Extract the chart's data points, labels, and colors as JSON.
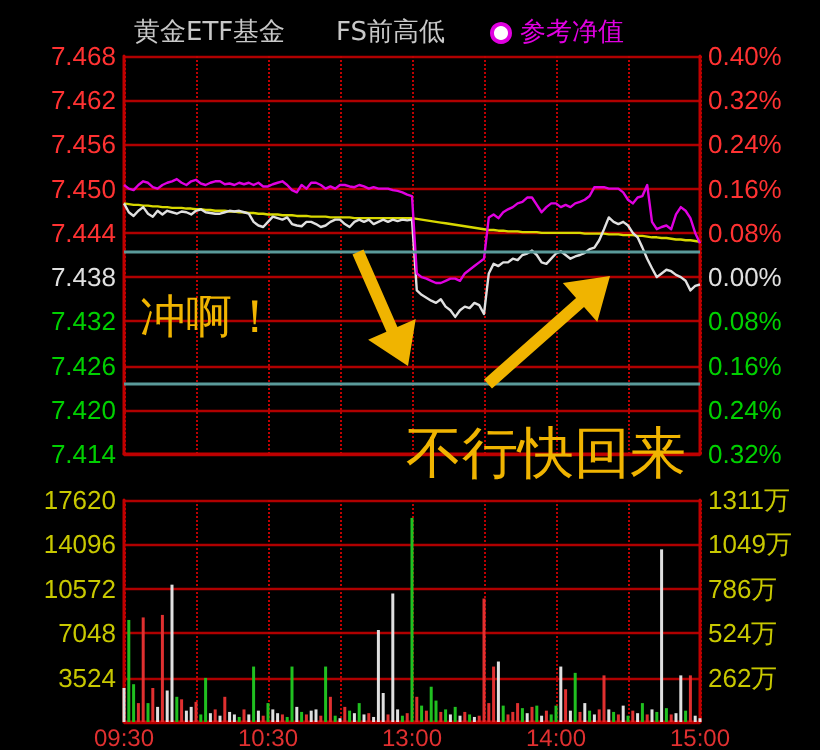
{
  "chart_data": [
    {
      "type": "line",
      "title": "黄金ETF基金",
      "subtitle": "FS前高低",
      "legend": "top",
      "grid": true,
      "tick_labels": "y",
      "marker": "none",
      "categories": [
        null,
        null,
        null,
        null,
        null,
        null,
        null,
        null,
        null,
        null,
        null,
        null,
        null,
        null,
        null,
        null,
        null,
        null,
        null,
        null,
        null,
        null,
        null,
        null,
        null,
        null,
        null,
        null,
        null,
        null,
        null,
        null,
        null,
        null,
        null,
        null,
        null,
        null,
        null,
        null,
        null,
        null,
        null,
        null,
        null,
        null,
        null,
        null,
        null,
        null,
        null,
        null,
        null,
        null,
        null,
        null,
        null,
        null,
        null,
        null,
        null,
        null,
        null,
        null,
        null,
        null,
        null,
        null,
        null,
        null,
        null,
        null,
        null,
        null,
        null,
        null,
        null,
        null,
        null,
        null,
        null,
        null,
        null,
        null,
        null,
        null,
        null,
        null,
        null,
        null,
        null,
        null,
        null,
        null,
        null,
        null,
        null,
        null,
        null,
        null,
        null,
        null,
        null,
        null,
        null,
        null,
        null,
        null,
        null,
        null,
        null,
        null,
        null,
        null,
        null,
        null,
        null,
        null,
        null,
        null,
        null
      ],
      "ylim": [
        7.414,
        7.468
      ],
      "yticks": [
        7.414,
        {
          "value": 7.42,
          "label": "7.420"
        },
        7.426,
        7.432,
        7.438,
        7.444,
        {
          "value": 7.45,
          "label": "7.450"
        },
        7.456,
        7.462,
        7.468
      ],
      "y2lim": [
        -0.32,
        0.4
      ],
      "y2ticks": [
        {
          "value": -0.32,
          "label": "0.32%"
        },
        {
          "value": -0.24,
          "label": "0.24%"
        },
        {
          "value": -0.16,
          "label": "0.16%"
        },
        {
          "value": -0.08,
          "label": "0.08%"
        },
        {
          "value": 0,
          "label": "0.00%"
        },
        {
          "value": 0.08,
          "label": "0.08%"
        },
        {
          "value": 0.16,
          "label": "0.16%"
        },
        {
          "value": 0.24,
          "label": "0.24%"
        },
        {
          "value": 0.32,
          "label": "0.32%"
        },
        {
          "value": 0.4,
          "label": "0.40%"
        }
      ],
      "ref_lines": [
        {
          "axis": "y",
          "value": 7.4416,
          "color": "#5a9a9a"
        },
        {
          "axis": "y",
          "value": 7.4235,
          "color": "#5a9a9a"
        }
      ],
      "annotations": [
        "冲啊！",
        "不行快回来"
      ],
      "series": [
        {
          "color": "#d8d800",
          "values": [
            7.448,
            7.4479,
            7.4478,
            7.4478,
            7.4477,
            7.4477,
            7.4476,
            7.4476,
            7.4475,
            7.4475,
            7.4474,
            7.4474,
            7.4474,
            7.4473,
            7.4473,
            7.4472,
            7.4472,
            7.4471,
            7.4471,
            7.447,
            7.447,
            7.447,
            7.4469,
            7.4469,
            7.4468,
            7.4468,
            7.4467,
            7.4467,
            7.4466,
            7.4466,
            7.4465,
            7.4465,
            7.4465,
            7.4464,
            7.4464,
            7.4464,
            7.4463,
            7.4463,
            7.4463,
            7.4462,
            7.4462,
            7.4462,
            7.4462,
            7.4461,
            7.4461,
            7.4461,
            7.4461,
            7.4461,
            7.446,
            7.446,
            7.446,
            7.446,
            7.446,
            7.446,
            7.446,
            7.446,
            7.446,
            7.446,
            7.446,
            7.446,
            7.446,
            7.4459,
            7.4458,
            7.4457,
            7.4456,
            7.4455,
            7.4454,
            7.4453,
            7.4452,
            7.4451,
            7.445,
            7.4449,
            7.4448,
            7.4447,
            7.4446,
            7.4445,
            7.4444,
            7.4444,
            7.4443,
            7.4443,
            7.4442,
            7.4442,
            7.4442,
            7.4441,
            7.4441,
            7.4441,
            7.4441,
            7.444,
            7.444,
            7.444,
            7.444,
            7.444,
            7.444,
            7.444,
            7.444,
            7.444,
            7.4439,
            7.4439,
            7.4439,
            7.4439,
            7.4439,
            7.4438,
            7.4438,
            7.4438,
            7.4437,
            7.4437,
            7.4437,
            7.4436,
            7.4436,
            7.4435,
            7.4434,
            7.4434,
            7.4433,
            7.4433,
            7.4432,
            7.4431,
            7.4431,
            7.443,
            7.443,
            7.4429,
            7.4428
          ]
        },
        {
          "color": "#e0e0e0",
          "values": [
            7.448,
            7.4468,
            7.4463,
            7.447,
            7.4475,
            7.4466,
            7.4462,
            7.447,
            7.4465,
            7.447,
            7.4468,
            7.4466,
            7.4469,
            7.4468,
            7.4465,
            7.447,
            7.4472,
            7.4468,
            7.4467,
            7.4466,
            7.4466,
            7.4468,
            7.447,
            7.4469,
            7.447,
            7.4468,
            7.4466,
            7.4455,
            7.445,
            7.4448,
            7.4455,
            7.4462,
            7.446,
            7.4458,
            7.4461,
            7.4452,
            7.445,
            7.4449,
            7.4455,
            7.4455,
            7.4452,
            7.4448,
            7.445,
            7.4455,
            7.4458,
            7.4458,
            7.4452,
            7.4448,
            7.4455,
            7.4458,
            7.4455,
            7.4458,
            7.4452,
            7.4455,
            7.4458,
            7.4455,
            7.4458,
            7.4456,
            7.4458,
            7.4457,
            7.4458,
            7.4362,
            7.4356,
            7.4352,
            7.4348,
            7.4345,
            7.435,
            7.434,
            7.4335,
            7.4326,
            7.4335,
            7.434,
            7.4338,
            7.4345,
            7.4342,
            7.433,
            7.4385,
            7.4398,
            7.4395,
            7.44,
            7.44,
            7.4405,
            7.4403,
            7.441,
            7.4412,
            7.4416,
            7.441,
            7.44,
            7.4398,
            7.4405,
            7.4412,
            7.4415,
            7.441,
            7.4405,
            7.4408,
            7.441,
            7.4413,
            7.4418,
            7.442,
            7.443,
            7.4445,
            7.4461,
            7.4455,
            7.4452,
            7.4455,
            7.445,
            7.444,
            7.4434,
            7.442,
            7.4405,
            7.4392,
            7.438,
            7.4385,
            7.439,
            7.4388,
            7.4383,
            7.438,
            7.4375,
            7.4362,
            7.4368,
            7.437
          ]
        },
        {
          "name": "参考净值",
          "color": "#e000e0",
          "values": [
            7.4505,
            7.45,
            7.4498,
            7.4505,
            7.451,
            7.4508,
            7.4502,
            7.45,
            7.4505,
            7.4508,
            7.451,
            7.4513,
            7.4508,
            7.4505,
            7.451,
            7.4512,
            7.4507,
            7.4505,
            7.4508,
            7.451,
            7.451,
            7.4506,
            7.4507,
            7.4505,
            7.4508,
            7.4506,
            7.4508,
            7.4505,
            7.4508,
            7.4503,
            7.4503,
            7.4506,
            7.4508,
            7.451,
            7.4505,
            7.4498,
            7.4495,
            7.4505,
            7.45,
            7.4508,
            7.4508,
            7.4505,
            7.45,
            7.4503,
            7.45,
            7.4505,
            7.4505,
            7.4503,
            7.4502,
            7.4505,
            7.4503,
            7.45,
            7.4502,
            7.45,
            7.45,
            7.45,
            7.4498,
            7.4497,
            7.4495,
            7.4492,
            7.449,
            7.4385,
            7.438,
            7.4378,
            7.4375,
            7.4372,
            7.4372,
            7.4375,
            7.4378,
            7.4378,
            7.4375,
            7.4385,
            7.439,
            7.4395,
            7.44,
            7.4405,
            7.4461,
            7.4465,
            7.446,
            7.4468,
            7.4472,
            7.4475,
            7.448,
            7.4482,
            7.4488,
            7.4488,
            7.4478,
            7.4468,
            7.4475,
            7.448,
            7.448,
            7.4475,
            7.4478,
            7.4475,
            7.448,
            7.4482,
            7.4485,
            7.449,
            7.4502,
            7.4502,
            7.4502,
            7.45,
            7.45,
            7.45,
            7.4495,
            7.4485,
            7.448,
            7.4488,
            7.449,
            7.4505,
            7.4455,
            7.4445,
            7.4448,
            7.445,
            7.4445,
            7.4465,
            7.4475,
            7.447,
            7.446,
            7.444,
            7.4426
          ]
        }
      ]
    },
    {
      "type": "bar",
      "grid": true,
      "categories": [
        "09:30",
        null,
        null,
        null,
        null,
        null,
        null,
        null,
        null,
        null,
        null,
        null,
        null,
        null,
        null,
        null,
        null,
        null,
        null,
        null,
        null,
        null,
        null,
        null,
        null,
        null,
        null,
        null,
        null,
        null,
        "10:30",
        null,
        null,
        null,
        null,
        null,
        null,
        null,
        null,
        null,
        null,
        null,
        null,
        null,
        null,
        null,
        null,
        null,
        null,
        null,
        null,
        null,
        null,
        null,
        null,
        null,
        null,
        null,
        null,
        null,
        "13:00",
        null,
        null,
        null,
        null,
        null,
        null,
        null,
        null,
        null,
        null,
        null,
        null,
        null,
        null,
        null,
        null,
        null,
        null,
        null,
        null,
        null,
        null,
        null,
        null,
        null,
        null,
        null,
        null,
        null,
        "14:00",
        null,
        null,
        null,
        null,
        null,
        null,
        null,
        null,
        null,
        null,
        null,
        null,
        null,
        null,
        null,
        null,
        null,
        null,
        null,
        null,
        null,
        null,
        null,
        null,
        null,
        null,
        null,
        null,
        null,
        "15:00"
      ],
      "ylim": [
        0,
        17620
      ],
      "yticks": [
        {
          "value": 0,
          "label": null
        },
        3524,
        7048,
        10572,
        14096,
        17620
      ],
      "y2lim": [
        0,
        1311
      ],
      "y2ticks": [
        {
          "value": 262,
          "label": "262万"
        },
        {
          "value": 524,
          "label": "524万"
        },
        {
          "value": 786,
          "label": "786万"
        },
        {
          "value": 1049,
          "label": "1049万"
        },
        {
          "value": 1311,
          "label": "1311万"
        }
      ],
      "values": [
        2700,
        8100,
        3000,
        1500,
        8300,
        1500,
        2700,
        1200,
        8500,
        2500,
        10900,
        2000,
        1800,
        900,
        1200,
        1600,
        600,
        3500,
        700,
        1000,
        500,
        2000,
        800,
        600,
        400,
        1000,
        600,
        4400,
        900,
        500,
        1500,
        1000,
        700,
        600,
        400,
        4400,
        1200,
        800,
        600,
        900,
        1000,
        500,
        4400,
        2000,
        500,
        300,
        1200,
        900,
        700,
        1500,
        600,
        700,
        400,
        7300,
        2300,
        600,
        10200,
        1000,
        500,
        700,
        16200,
        2000,
        1300,
        900,
        2800,
        1700,
        800,
        1000,
        600,
        1200,
        500,
        800,
        600,
        400,
        500,
        9800,
        1500,
        4400,
        4800,
        1300,
        600,
        800,
        1500,
        1100,
        700,
        1200,
        1300,
        500,
        900,
        600,
        1300,
        4400,
        2600,
        900,
        3900,
        800,
        1500,
        900,
        600,
        1000,
        3700,
        1000,
        800,
        600,
        1300,
        500,
        900,
        700,
        1500,
        600,
        1000,
        800,
        13700,
        1100,
        600,
        700,
        3700,
        900,
        3700,
        500,
        300
      ],
      "colors": [
        "#e0e0e0",
        "#20c020",
        "#20c020",
        "#e03030",
        "#e03030",
        "#20c020",
        "#e03030",
        "#e0e0e0",
        "#e03030",
        "#e0e0e0",
        "#e0e0e0",
        "#20c020",
        "#e03030",
        "#e0e0e0",
        "#e0e0e0",
        "#e03030",
        "#20c020",
        "#20c020",
        "#e0e0e0",
        "#e03030",
        "#e0e0e0",
        "#e03030",
        "#e0e0e0",
        "#e0e0e0",
        "#20c020",
        "#e03030",
        "#e0e0e0",
        "#20c020",
        "#e0e0e0",
        "#e03030",
        "#20c020",
        "#e0e0e0",
        "#e0e0e0",
        "#e03030",
        "#20c020",
        "#20c020",
        "#e0e0e0",
        "#20c020",
        "#e03030",
        "#e0e0e0",
        "#e0e0e0",
        "#e03030",
        "#20c020",
        "#e03030",
        "#20c020",
        "#e0e0e0",
        "#e03030",
        "#20c020",
        "#e0e0e0",
        "#20c020",
        "#e0e0e0",
        "#e03030",
        "#e0e0e0",
        "#e0e0e0",
        "#e0e0e0",
        "#e03030",
        "#e0e0e0",
        "#e0e0e0",
        "#20c020",
        "#e03030",
        "#20c020",
        "#e03030",
        "#20c020",
        "#e03030",
        "#20c020",
        "#20c020",
        "#e03030",
        "#20c020",
        "#e0e0e0",
        "#20c020",
        "#e0e0e0",
        "#e03030",
        "#20c020",
        "#e0e0e0",
        "#e03030",
        "#e03030",
        "#e03030",
        "#e03030",
        "#e0e0e0",
        "#20c020",
        "#e03030",
        "#e03030",
        "#e03030",
        "#20c020",
        "#e0e0e0",
        "#e03030",
        "#20c020",
        "#e0e0e0",
        "#e03030",
        "#20c020",
        "#20c020",
        "#e0e0e0",
        "#e03030",
        "#e0e0e0",
        "#20c020",
        "#e03030",
        "#e0e0e0",
        "#20c020",
        "#e0e0e0",
        "#e03030",
        "#e03030",
        "#e0e0e0",
        "#20c020",
        "#e03030",
        "#e0e0e0",
        "#20c020",
        "#e03030",
        "#e0e0e0",
        "#20c020",
        "#e03030",
        "#e0e0e0",
        "#20c020",
        "#e0e0e0",
        "#20c020",
        "#e03030",
        "#e0e0e0",
        "#e0e0e0",
        "#20c020",
        "#e03030",
        "#e0e0e0",
        "#e0e0e0"
      ]
    }
  ]
}
